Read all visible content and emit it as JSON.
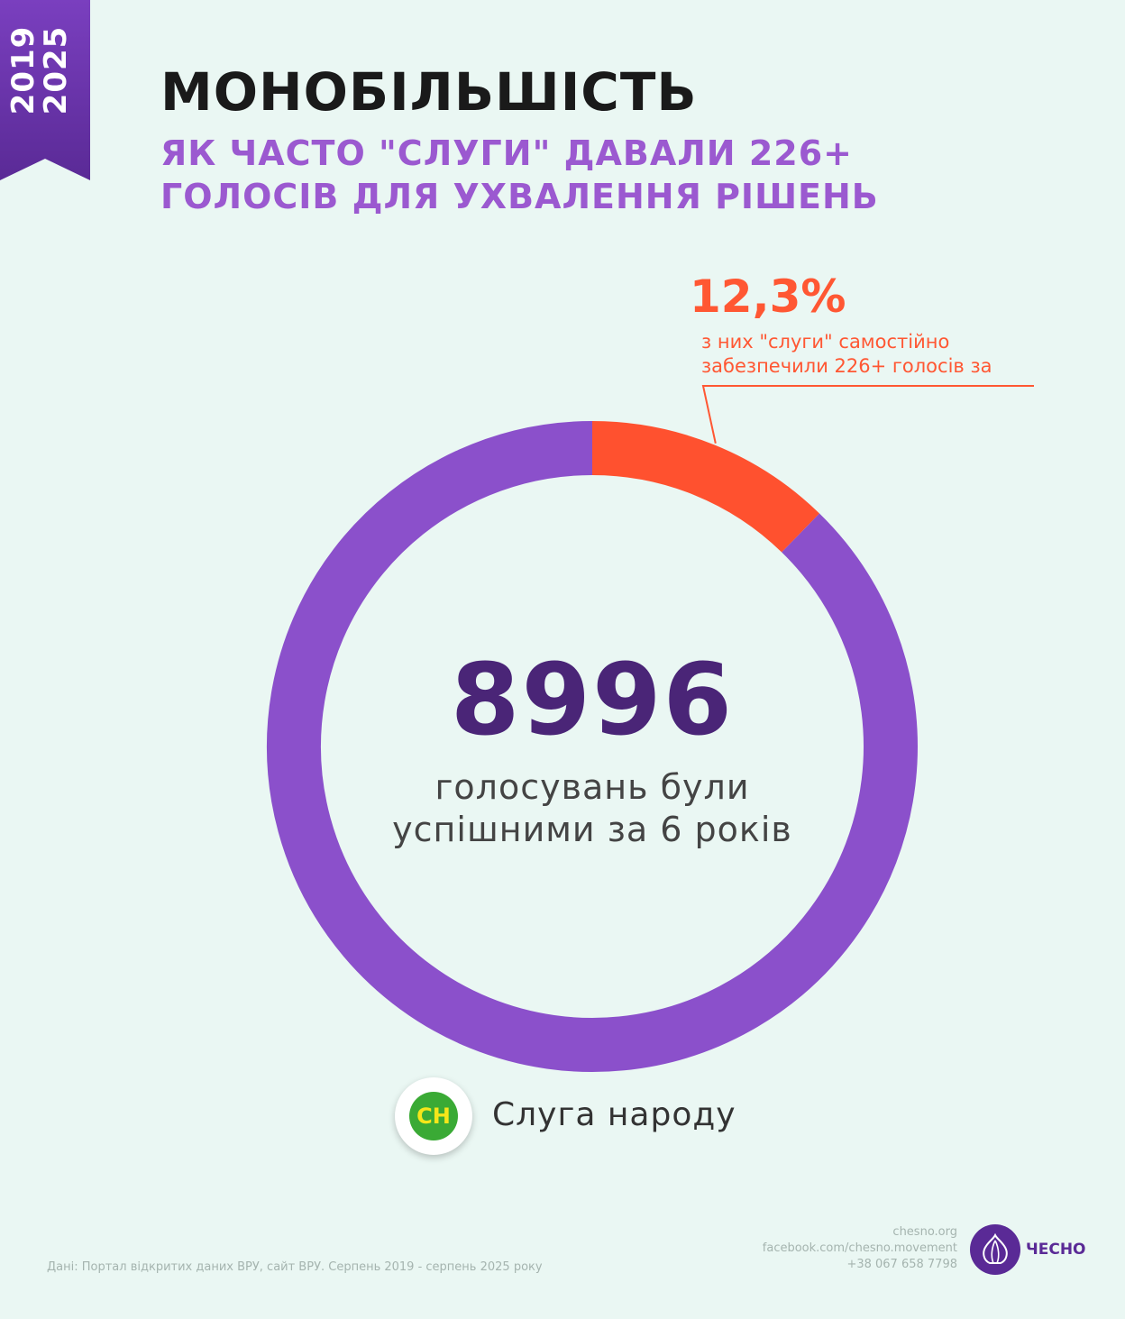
{
  "header": {
    "years": [
      "2019",
      "2025"
    ],
    "title": "МОНОБІЛЬШІСТЬ",
    "subtitle": "ЯК ЧАСТО \"СЛУГИ\" ДАВАЛИ 226+ ГОЛОСІВ ДЛЯ УХВАЛЕННЯ РІШЕНЬ"
  },
  "chart_data": {
    "type": "pie",
    "total_value": "8996",
    "total_caption": "голосувань були успішними за 6 років",
    "slices": [
      {
        "value": 12.3,
        "color": "#ff512f"
      },
      {
        "value": 87.7,
        "color": "#8b50cb"
      }
    ],
    "annotation": {
      "value_text": "12,3%",
      "text": "з них \"слуги\" самостійно забезпечили 226+ голосів за"
    }
  },
  "legend": {
    "party_badge": "СН",
    "party_name": "Слуга народу",
    "badge_color": "#3aaa35",
    "badge_text_color": "#f5e61a"
  },
  "footer": {
    "source": "Дані: Портал відкритих даних ВРУ, сайт ВРУ. Серпень 2019 - серпень 2025 року",
    "contacts": [
      "chesno.org",
      "facebook.com/chesno.movement",
      "+38 067 658 7798"
    ],
    "brand": "ЧЕСНО",
    "brand_icon": "garlic-icon"
  },
  "colors": {
    "background": "#eaf7f3",
    "accent_purple": "#9b59d0",
    "accent_orange": "#ff5733",
    "dark_purple": "#4a2577"
  }
}
